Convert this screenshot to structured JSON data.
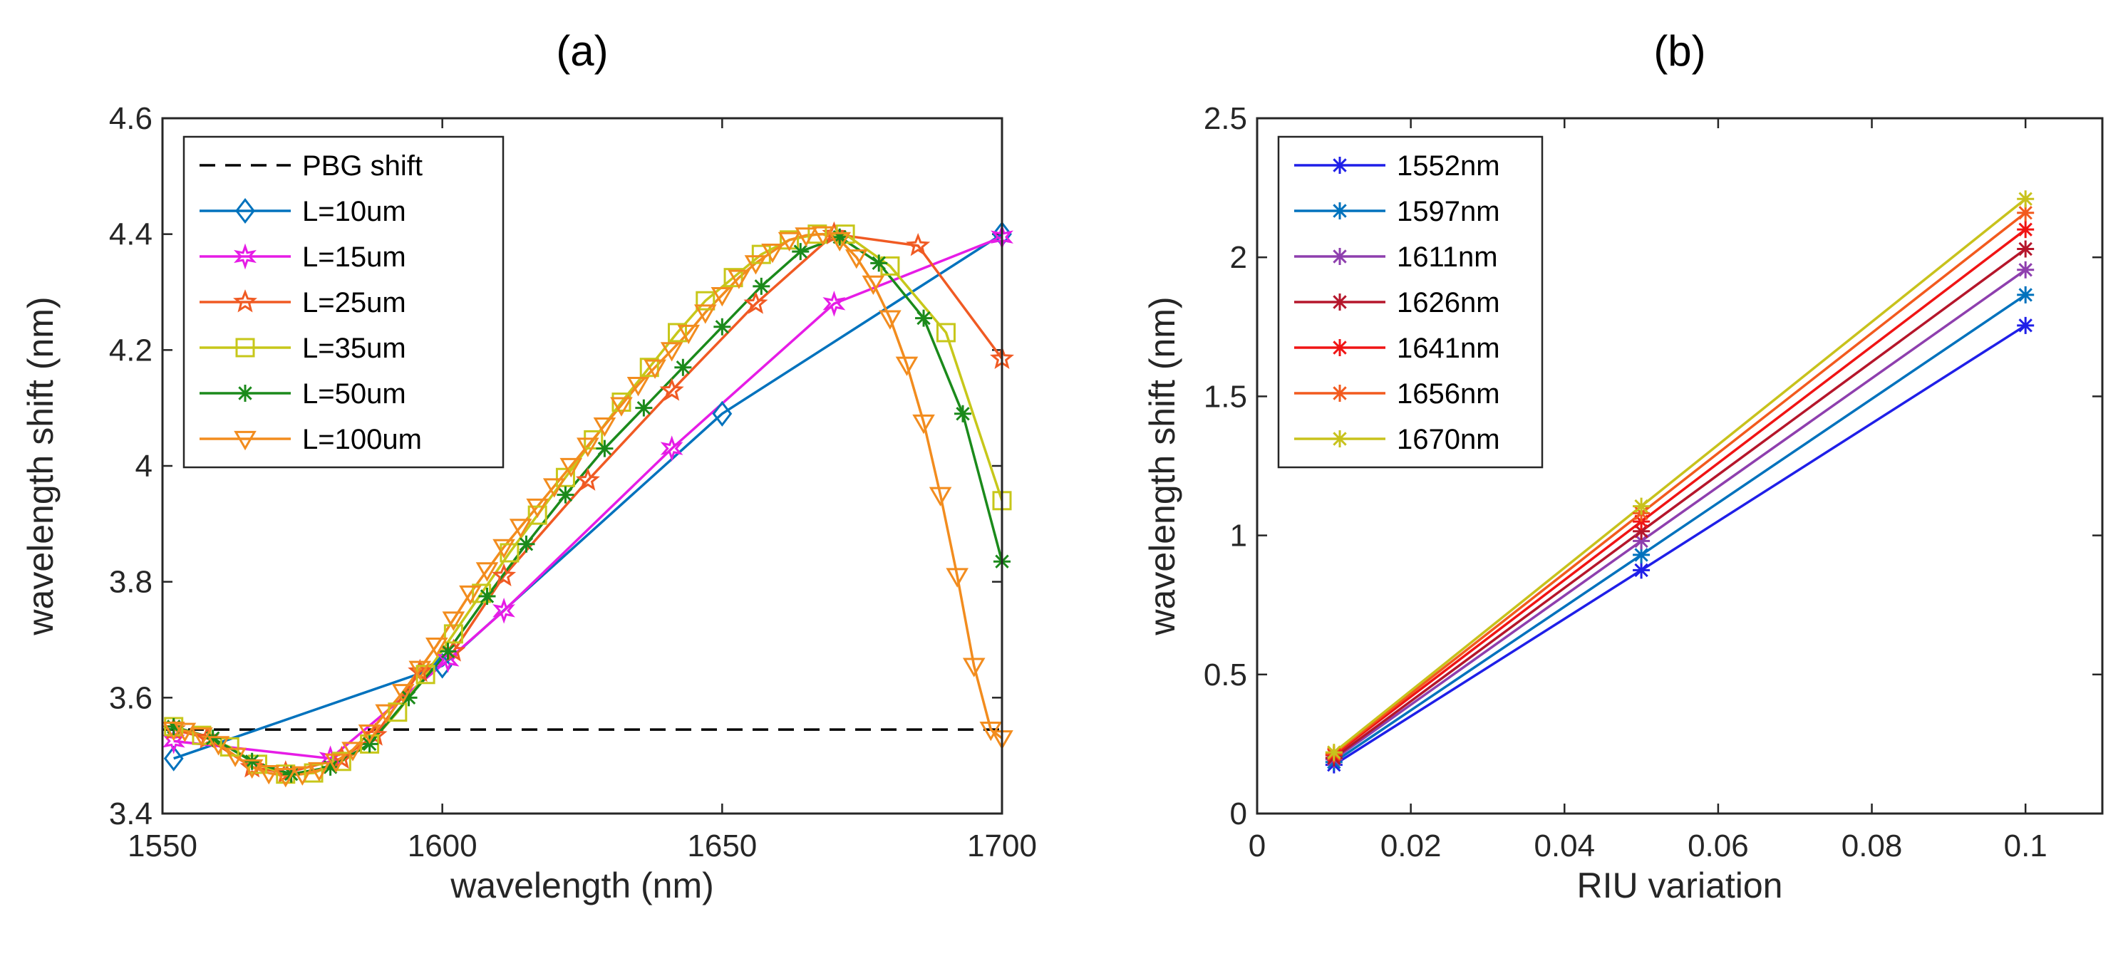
{
  "chart_data": [
    {
      "type": "line",
      "title": "(a)",
      "xlabel": "wavelength (nm)",
      "ylabel": "wavelength shift (nm)",
      "xlim": [
        1550,
        1700
      ],
      "ylim": [
        3.4,
        4.6
      ],
      "xticks": [
        1550,
        1600,
        1650,
        1700
      ],
      "yticks": [
        3.4,
        3.6,
        3.8,
        4,
        4.2,
        4.4,
        4.6
      ],
      "ytick_labels": [
        "3.4",
        "3.6",
        "3.8",
        "4",
        "4.2",
        "4.4",
        "4.6"
      ],
      "legend_position": "top-left",
      "reference_line": {
        "name": "PBG shift",
        "y": 3.545,
        "color": "#000000",
        "style": "dashed"
      },
      "series": [
        {
          "name": "L=10um",
          "color": "#0072BD",
          "marker": "diamond",
          "x": [
            1552,
            1600,
            1650,
            1700
          ],
          "y": [
            3.495,
            3.655,
            4.09,
            4.4
          ]
        },
        {
          "name": "L=15um",
          "color": "#E61CE6",
          "marker": "hexagram",
          "x": [
            1552,
            1580,
            1601,
            1611,
            1641,
            1670,
            1700
          ],
          "y": [
            3.525,
            3.495,
            3.665,
            3.75,
            4.03,
            4.28,
            4.395
          ]
        },
        {
          "name": "L=25um",
          "color": "#F05A23",
          "marker": "pentagram",
          "x": [
            1552,
            1558,
            1566,
            1572,
            1582,
            1588,
            1596,
            1602,
            1611,
            1626,
            1641,
            1656,
            1670,
            1685,
            1700
          ],
          "y": [
            3.545,
            3.53,
            3.48,
            3.47,
            3.495,
            3.535,
            3.645,
            3.68,
            3.81,
            3.975,
            4.13,
            4.28,
            4.4,
            4.38,
            4.185
          ]
        },
        {
          "name": "L=35um",
          "color": "#C7C71A",
          "marker": "square",
          "x": [
            1552,
            1557,
            1562,
            1567,
            1572,
            1577,
            1582,
            1587,
            1592,
            1597,
            1602,
            1607,
            1612,
            1617,
            1622,
            1627,
            1632,
            1637,
            1642,
            1647,
            1652,
            1657,
            1662,
            1667,
            1672,
            1680,
            1690,
            1700
          ],
          "y": [
            3.55,
            3.535,
            3.515,
            3.485,
            3.468,
            3.47,
            3.49,
            3.52,
            3.575,
            3.64,
            3.71,
            3.78,
            3.85,
            3.915,
            3.98,
            4.045,
            4.11,
            4.17,
            4.23,
            4.285,
            4.325,
            4.365,
            4.39,
            4.4,
            4.4,
            4.345,
            4.23,
            3.94
          ]
        },
        {
          "name": "L=50um",
          "color": "#1B8A1B",
          "marker": "asterisk",
          "x": [
            1552,
            1559,
            1566,
            1573,
            1580,
            1587,
            1594,
            1601,
            1608,
            1615,
            1622,
            1629,
            1636,
            1643,
            1650,
            1657,
            1664,
            1671,
            1678,
            1686,
            1693,
            1700
          ],
          "y": [
            3.55,
            3.53,
            3.49,
            3.468,
            3.48,
            3.52,
            3.6,
            3.68,
            3.775,
            3.865,
            3.95,
            4.03,
            4.1,
            4.17,
            4.24,
            4.31,
            4.37,
            4.395,
            4.35,
            4.255,
            4.09,
            3.835
          ]
        },
        {
          "name": "L=100um",
          "color": "#F28C1E",
          "marker": "triangle-down",
          "x": [
            1552,
            1554,
            1557,
            1560,
            1563,
            1566,
            1569,
            1572,
            1575,
            1578,
            1581,
            1584,
            1587,
            1590,
            1593,
            1596,
            1599,
            1602,
            1605,
            1608,
            1611,
            1614,
            1617,
            1620,
            1623,
            1626,
            1629,
            1632,
            1635,
            1638,
            1641,
            1644,
            1647,
            1650,
            1653,
            1656,
            1659,
            1662,
            1665,
            1668,
            1671,
            1674,
            1677,
            1680,
            1683,
            1686,
            1689,
            1692,
            1695,
            1698,
            1700
          ],
          "y": [
            3.545,
            3.543,
            3.535,
            3.52,
            3.5,
            3.48,
            3.47,
            3.465,
            3.468,
            3.475,
            3.49,
            3.51,
            3.54,
            3.575,
            3.61,
            3.65,
            3.69,
            3.735,
            3.78,
            3.82,
            3.86,
            3.895,
            3.93,
            3.965,
            4.0,
            4.035,
            4.07,
            4.105,
            4.14,
            4.17,
            4.2,
            4.23,
            4.265,
            4.295,
            4.325,
            4.35,
            4.37,
            4.39,
            4.398,
            4.4,
            4.39,
            4.36,
            4.315,
            4.255,
            4.175,
            4.075,
            3.95,
            3.81,
            3.655,
            3.545,
            3.53
          ]
        }
      ]
    },
    {
      "type": "line",
      "title": "(b)",
      "xlabel": "RIU variation",
      "ylabel": "wavelength shift (nm)",
      "xlim": [
        0,
        0.11
      ],
      "ylim": [
        0,
        2.5
      ],
      "xticks": [
        0,
        0.02,
        0.04,
        0.06,
        0.08,
        0.1
      ],
      "xtick_labels": [
        "0",
        "0.02",
        "0.04",
        "0.06",
        "0.08",
        "0.1"
      ],
      "yticks": [
        0,
        0.5,
        1,
        1.5,
        2,
        2.5
      ],
      "ytick_labels": [
        "0",
        "0.5",
        "1",
        "1.5",
        "2",
        "2.5"
      ],
      "legend_position": "top-left",
      "x": [
        0.01,
        0.05,
        0.1
      ],
      "series": [
        {
          "name": "1552nm",
          "color": "#1F1FE8",
          "marker": "asterisk",
          "y": [
            0.175,
            0.875,
            1.755
          ]
        },
        {
          "name": "1597nm",
          "color": "#0072BD",
          "marker": "asterisk",
          "y": [
            0.185,
            0.93,
            1.865
          ]
        },
        {
          "name": "1611nm",
          "color": "#8E3FAE",
          "marker": "asterisk",
          "y": [
            0.195,
            0.98,
            1.955
          ]
        },
        {
          "name": "1626nm",
          "color": "#B5162B",
          "marker": "asterisk",
          "y": [
            0.2,
            1.015,
            2.03
          ]
        },
        {
          "name": "1641nm",
          "color": "#F01414",
          "marker": "asterisk",
          "y": [
            0.21,
            1.05,
            2.1
          ]
        },
        {
          "name": "1656nm",
          "color": "#F25A1E",
          "marker": "asterisk",
          "y": [
            0.215,
            1.08,
            2.16
          ]
        },
        {
          "name": "1670nm",
          "color": "#C8C21C",
          "marker": "asterisk",
          "y": [
            0.22,
            1.105,
            2.21
          ]
        }
      ]
    }
  ]
}
